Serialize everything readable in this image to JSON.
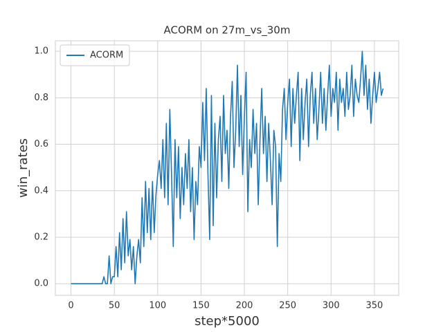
{
  "chart_data": {
    "type": "line",
    "title": "ACORM on 27m_vs_30m",
    "x_label": "step*5000",
    "y_label": "win_rates",
    "legend": "upper left",
    "grid": true,
    "xlim": [
      -18,
      378
    ],
    "ylim": [
      -0.05,
      1.045
    ],
    "xticks": [
      0,
      50,
      100,
      150,
      200,
      250,
      300,
      350
    ],
    "yticks": [
      {
        "value": 0,
        "label": "0.0"
      },
      0.2,
      0.4,
      0.6,
      0.8,
      {
        "value": 1,
        "label": "1.0"
      }
    ],
    "x": [
      0,
      2,
      4,
      6,
      8,
      10,
      12,
      14,
      16,
      18,
      20,
      22,
      24,
      26,
      28,
      30,
      32,
      34,
      36,
      38,
      40,
      42,
      44,
      46,
      48,
      50,
      52,
      54,
      56,
      58,
      60,
      62,
      64,
      66,
      68,
      70,
      72,
      74,
      76,
      78,
      80,
      82,
      84,
      86,
      88,
      90,
      92,
      94,
      96,
      98,
      100,
      102,
      104,
      106,
      108,
      110,
      112,
      114,
      116,
      118,
      120,
      122,
      124,
      126,
      128,
      130,
      132,
      134,
      136,
      138,
      140,
      142,
      144,
      146,
      148,
      150,
      152,
      154,
      156,
      158,
      160,
      162,
      164,
      166,
      168,
      170,
      172,
      174,
      176,
      178,
      180,
      182,
      184,
      186,
      188,
      190,
      192,
      194,
      196,
      198,
      200,
      202,
      204,
      206,
      208,
      210,
      212,
      214,
      216,
      218,
      220,
      222,
      224,
      226,
      228,
      230,
      232,
      234,
      236,
      238,
      240,
      242,
      244,
      246,
      248,
      250,
      252,
      254,
      256,
      258,
      260,
      262,
      264,
      266,
      268,
      270,
      272,
      274,
      276,
      278,
      280,
      282,
      284,
      286,
      288,
      290,
      292,
      294,
      296,
      298,
      300,
      302,
      304,
      306,
      308,
      310,
      312,
      314,
      316,
      318,
      320,
      322,
      324,
      326,
      328,
      330,
      332,
      334,
      336,
      338,
      340,
      342,
      344,
      346,
      348,
      350,
      352,
      354,
      356,
      358,
      360
    ],
    "series": [
      {
        "name": "ACORM",
        "color": "#1f77b4",
        "values": [
          0,
          0,
          0,
          0,
          0,
          0,
          0,
          0,
          0,
          0,
          0,
          0,
          0,
          0,
          0,
          0,
          0,
          0,
          0,
          0.03,
          0,
          0,
          0.12,
          0,
          0.03,
          0.03,
          0.16,
          0.03,
          0.22,
          0.06,
          0.28,
          0.09,
          0.31,
          0.12,
          0.19,
          0.06,
          0.16,
          0.0,
          0.12,
          0.19,
          0.09,
          0.37,
          0.16,
          0.44,
          0.22,
          0.41,
          0.19,
          0.44,
          0.22,
          0.38,
          0.47,
          0.53,
          0.41,
          0.62,
          0.37,
          0.69,
          0.34,
          0.75,
          0.47,
          0.16,
          0.62,
          0.37,
          0.59,
          0.28,
          0.5,
          0.34,
          0.56,
          0.41,
          0.62,
          0.31,
          0.5,
          0.19,
          0.44,
          0.34,
          0.59,
          0.5,
          0.78,
          0.53,
          0.84,
          0.47,
          0.19,
          0.81,
          0.25,
          0.69,
          0.37,
          0.62,
          0.72,
          0.44,
          0.81,
          0.56,
          0.66,
          0.41,
          0.72,
          0.87,
          0.5,
          0.66,
          0.94,
          0.59,
          0.81,
          0.47,
          0.72,
          0.91,
          0.31,
          0.62,
          0.5,
          0.75,
          0.56,
          0.69,
          0.34,
          0.62,
          0.84,
          0.56,
          0.72,
          0.44,
          0.69,
          0.53,
          0.34,
          0.66,
          0.59,
          0.16,
          0.56,
          0.44,
          0.75,
          0.84,
          0.62,
          0.78,
          0.88,
          0.59,
          0.84,
          0.69,
          0.81,
          0.91,
          0.53,
          0.84,
          0.62,
          0.78,
          0.88,
          0.59,
          0.81,
          0.91,
          0.69,
          0.84,
          0.62,
          0.75,
          0.91,
          0.69,
          0.84,
          0.66,
          0.81,
          0.94,
          0.72,
          0.84,
          0.78,
          0.91,
          0.66,
          0.88,
          0.78,
          0.84,
          0.72,
          0.91,
          0.75,
          0.81,
          0.94,
          0.72,
          0.88,
          0.81,
          0.78,
          0.88,
          1.0,
          0.81,
          0.94,
          0.75,
          0.88,
          0.69,
          0.81,
          0.91,
          0.78,
          0.84,
          0.91,
          0.81,
          0.84
        ]
      }
    ]
  }
}
